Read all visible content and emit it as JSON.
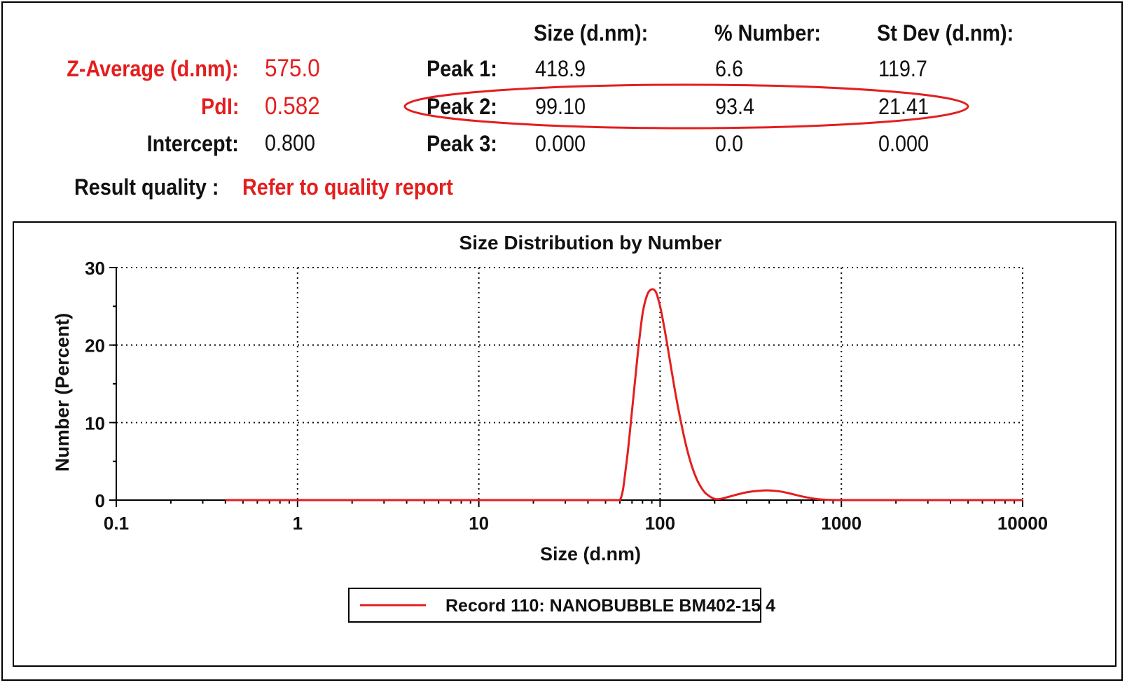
{
  "summary": {
    "z_average_label": "Z-Average (d.nm):",
    "z_average_value": "575.0",
    "pdi_label": "PdI:",
    "pdi_value": "0.582",
    "intercept_label": "Intercept:",
    "intercept_value": "0.800",
    "result_quality_label": "Result quality :",
    "result_quality_value": "Refer to quality report"
  },
  "peaks": {
    "headers": [
      "Size (d.nm):",
      "% Number:",
      "St Dev (d.nm):"
    ],
    "rows": [
      {
        "label": "Peak 1:",
        "size": "418.9",
        "number": "6.6",
        "stdev": "119.7"
      },
      {
        "label": "Peak 2:",
        "size": "99.10",
        "number": "93.4",
        "stdev": "21.41"
      },
      {
        "label": "Peak 3:",
        "size": "0.000",
        "number": "0.0",
        "stdev": "0.000"
      }
    ]
  },
  "colors": {
    "accent": "#e41e1e",
    "text": "#111111",
    "grid": "#000000"
  },
  "chart_data": {
    "type": "line",
    "title": "Size Distribution by Number",
    "xlabel": "Size (d.nm)",
    "ylabel": "Number (Percent)",
    "x_scale": "log",
    "xlim": [
      0.1,
      10000
    ],
    "ylim": [
      0,
      30
    ],
    "x_ticks": [
      "0.1",
      "1",
      "10",
      "100",
      "1000",
      "10000"
    ],
    "y_ticks": [
      "0",
      "10",
      "20",
      "30"
    ],
    "grid": true,
    "legend_position": "bottom-center",
    "series": [
      {
        "name": "Record 110: NANOBUBBLE BM402-15 4",
        "color": "#e41e1e",
        "x": [
          0.4,
          1,
          10,
          50,
          60,
          65,
          70,
          75,
          80,
          85,
          90,
          95,
          100,
          105,
          110,
          120,
          130,
          140,
          150,
          160,
          170,
          180,
          200,
          220,
          250,
          300,
          350,
          400,
          450,
          500,
          600,
          700,
          800,
          1000,
          2000,
          5000,
          10000
        ],
        "y": [
          0,
          0,
          0,
          0,
          0,
          4.5,
          11.5,
          18.5,
          24,
          26.5,
          27.2,
          26.8,
          25,
          22.5,
          19.8,
          14.5,
          10.2,
          6.8,
          4.3,
          2.6,
          1.5,
          0.8,
          0.15,
          0.2,
          0.55,
          1.0,
          1.2,
          1.25,
          1.15,
          0.95,
          0.5,
          0.2,
          0.05,
          0,
          0,
          0,
          0
        ]
      }
    ]
  }
}
